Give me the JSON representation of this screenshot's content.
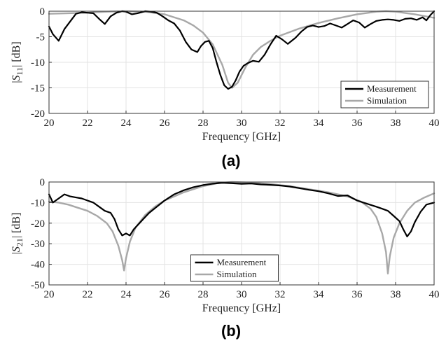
{
  "figure": {
    "panel_labels": [
      "(a)",
      "(b)"
    ]
  },
  "chart_data": [
    {
      "type": "line",
      "panel": "(a)",
      "xlabel": "Frequency [GHz]",
      "ylabel_pre": "|",
      "ylabel_sym": "S",
      "ylabel_sub": "11",
      "ylabel_post": "| [dB]",
      "xlim": [
        20,
        40
      ],
      "ylim": [
        -20,
        0
      ],
      "xticks": [
        20,
        22,
        24,
        26,
        28,
        30,
        32,
        34,
        36,
        38,
        40
      ],
      "yticks": [
        0,
        -5,
        -10,
        -15,
        -20
      ],
      "grid": true,
      "legend_position": "bottom-right",
      "series": [
        {
          "name": "Measurement",
          "color": "#000000",
          "x": [
            20,
            20.2,
            20.5,
            20.8,
            21.1,
            21.4,
            21.7,
            22.0,
            22.3,
            22.6,
            22.9,
            23.2,
            23.5,
            23.8,
            24.0,
            24.3,
            24.6,
            25.0,
            25.3,
            25.6,
            25.9,
            26.2,
            26.5,
            26.8,
            27.1,
            27.4,
            27.7,
            27.9,
            28.1,
            28.3,
            28.5,
            28.7,
            28.9,
            29.1,
            29.3,
            29.5,
            29.7,
            29.9,
            30.1,
            30.3,
            30.6,
            30.9,
            31.2,
            31.5,
            31.8,
            32.1,
            32.4,
            32.8,
            33.1,
            33.4,
            33.7,
            34.0,
            34.3,
            34.6,
            34.9,
            35.2,
            35.5,
            35.8,
            36.1,
            36.4,
            36.7,
            37.0,
            37.3,
            37.6,
            37.9,
            38.2,
            38.5,
            38.8,
            39.1,
            39.4,
            39.6,
            39.8,
            40.0
          ],
          "y": [
            -3.0,
            -4.5,
            -5.8,
            -3.5,
            -2.0,
            -0.5,
            -0.2,
            -0.3,
            -0.4,
            -1.5,
            -2.5,
            -1.0,
            -0.3,
            0.0,
            -0.1,
            -0.6,
            -0.4,
            0.0,
            -0.1,
            -0.3,
            -1.0,
            -1.8,
            -2.4,
            -3.8,
            -6.0,
            -7.5,
            -8.0,
            -6.8,
            -6.0,
            -5.8,
            -7.2,
            -10.0,
            -12.5,
            -14.5,
            -15.2,
            -14.8,
            -13.5,
            -11.8,
            -10.7,
            -10.2,
            -9.7,
            -9.9,
            -8.5,
            -6.5,
            -4.8,
            -5.5,
            -6.4,
            -5.2,
            -4.0,
            -3.1,
            -2.8,
            -3.1,
            -2.9,
            -2.4,
            -2.8,
            -3.2,
            -2.5,
            -1.8,
            -2.2,
            -3.2,
            -2.5,
            -1.9,
            -1.7,
            -1.6,
            -1.7,
            -1.9,
            -1.5,
            -1.4,
            -1.7,
            -1.2,
            -1.8,
            -0.8,
            0.0
          ]
        },
        {
          "name": "Simulation",
          "color": "#a8a8a8",
          "x": [
            20,
            21,
            22,
            23,
            24,
            25,
            26,
            27,
            27.5,
            28,
            28.5,
            29.0,
            29.3,
            29.5,
            29.8,
            30.2,
            30.6,
            31,
            31.5,
            32,
            33,
            34,
            35,
            36,
            37,
            37.5,
            38,
            39,
            40
          ],
          "y": [
            -0.5,
            -0.4,
            -0.3,
            -0.1,
            0.0,
            -0.1,
            -0.6,
            -1.8,
            -2.8,
            -4.2,
            -6.5,
            -10.5,
            -14.0,
            -15.0,
            -14.0,
            -11.0,
            -8.5,
            -7.0,
            -5.8,
            -4.8,
            -3.4,
            -2.3,
            -1.4,
            -0.6,
            -0.1,
            0.0,
            -0.1,
            -0.6,
            -1.3
          ]
        }
      ]
    },
    {
      "type": "line",
      "panel": "(b)",
      "xlabel": "Frequency [GHz]",
      "ylabel_pre": "|",
      "ylabel_sym": "S",
      "ylabel_sub": "21",
      "ylabel_post": "| [dB]",
      "xlim": [
        20,
        40
      ],
      "ylim": [
        -50,
        0
      ],
      "xticks": [
        20,
        22,
        24,
        26,
        28,
        30,
        32,
        34,
        36,
        38,
        40
      ],
      "yticks": [
        0,
        -10,
        -20,
        -30,
        -40,
        -50
      ],
      "grid": true,
      "legend_position": "bottom-center",
      "series": [
        {
          "name": "Measurement",
          "color": "#000000",
          "x": [
            20,
            20.2,
            20.5,
            20.8,
            21.1,
            21.4,
            21.7,
            22.0,
            22.3,
            22.6,
            22.9,
            23.2,
            23.4,
            23.6,
            23.8,
            24.0,
            24.2,
            24.4,
            24.6,
            24.9,
            25.2,
            25.6,
            26.0,
            26.5,
            27.0,
            27.5,
            28.0,
            28.5,
            29.0,
            29.5,
            30.0,
            30.5,
            31.0,
            31.5,
            32.0,
            32.5,
            33.0,
            33.5,
            34.0,
            34.5,
            35.0,
            35.5,
            36.0,
            36.5,
            37.0,
            37.3,
            37.6,
            37.9,
            38.2,
            38.4,
            38.6,
            38.8,
            39.0,
            39.3,
            39.6,
            40.0
          ],
          "y": [
            -6,
            -10,
            -8,
            -6,
            -7,
            -7.5,
            -8,
            -9,
            -10,
            -12,
            -14,
            -15,
            -18,
            -23,
            -26,
            -25,
            -26,
            -23,
            -21,
            -18,
            -15,
            -12,
            -9,
            -6,
            -4,
            -2.5,
            -1.5,
            -0.8,
            -0.4,
            -0.6,
            -0.9,
            -0.7,
            -1.2,
            -1.4,
            -1.7,
            -2.2,
            -3.0,
            -3.8,
            -4.5,
            -5.5,
            -6.8,
            -6.5,
            -9.0,
            -10.5,
            -12.0,
            -13.0,
            -14.0,
            -16.5,
            -19.0,
            -23.0,
            -26.5,
            -24.0,
            -19.5,
            -14.5,
            -11.0,
            -10.0
          ]
        },
        {
          "name": "Simulation",
          "color": "#a8a8a8",
          "x": [
            20,
            20.5,
            21,
            21.5,
            22,
            22.5,
            23.0,
            23.3,
            23.6,
            23.8,
            23.9,
            24.0,
            24.2,
            24.5,
            25,
            25.5,
            26,
            27,
            28,
            28.8,
            29.5,
            30.5,
            31.5,
            32.5,
            33.5,
            34.5,
            35.5,
            36.2,
            36.7,
            37.0,
            37.3,
            37.5,
            37.6,
            37.7,
            37.9,
            38.2,
            38.6,
            39.0,
            39.5,
            40.0
          ],
          "y": [
            -9.5,
            -10,
            -11,
            -12.5,
            -14,
            -16.5,
            -20,
            -24,
            -31,
            -38,
            -43,
            -37,
            -29,
            -22,
            -16,
            -12,
            -9,
            -5,
            -2,
            -0.5,
            0.0,
            -0.3,
            -1.0,
            -2.0,
            -3.5,
            -5.0,
            -7.0,
            -9.5,
            -13,
            -17,
            -25,
            -34,
            -44.5,
            -36,
            -27,
            -20,
            -14,
            -10,
            -7.5,
            -5.5
          ]
        }
      ]
    }
  ]
}
